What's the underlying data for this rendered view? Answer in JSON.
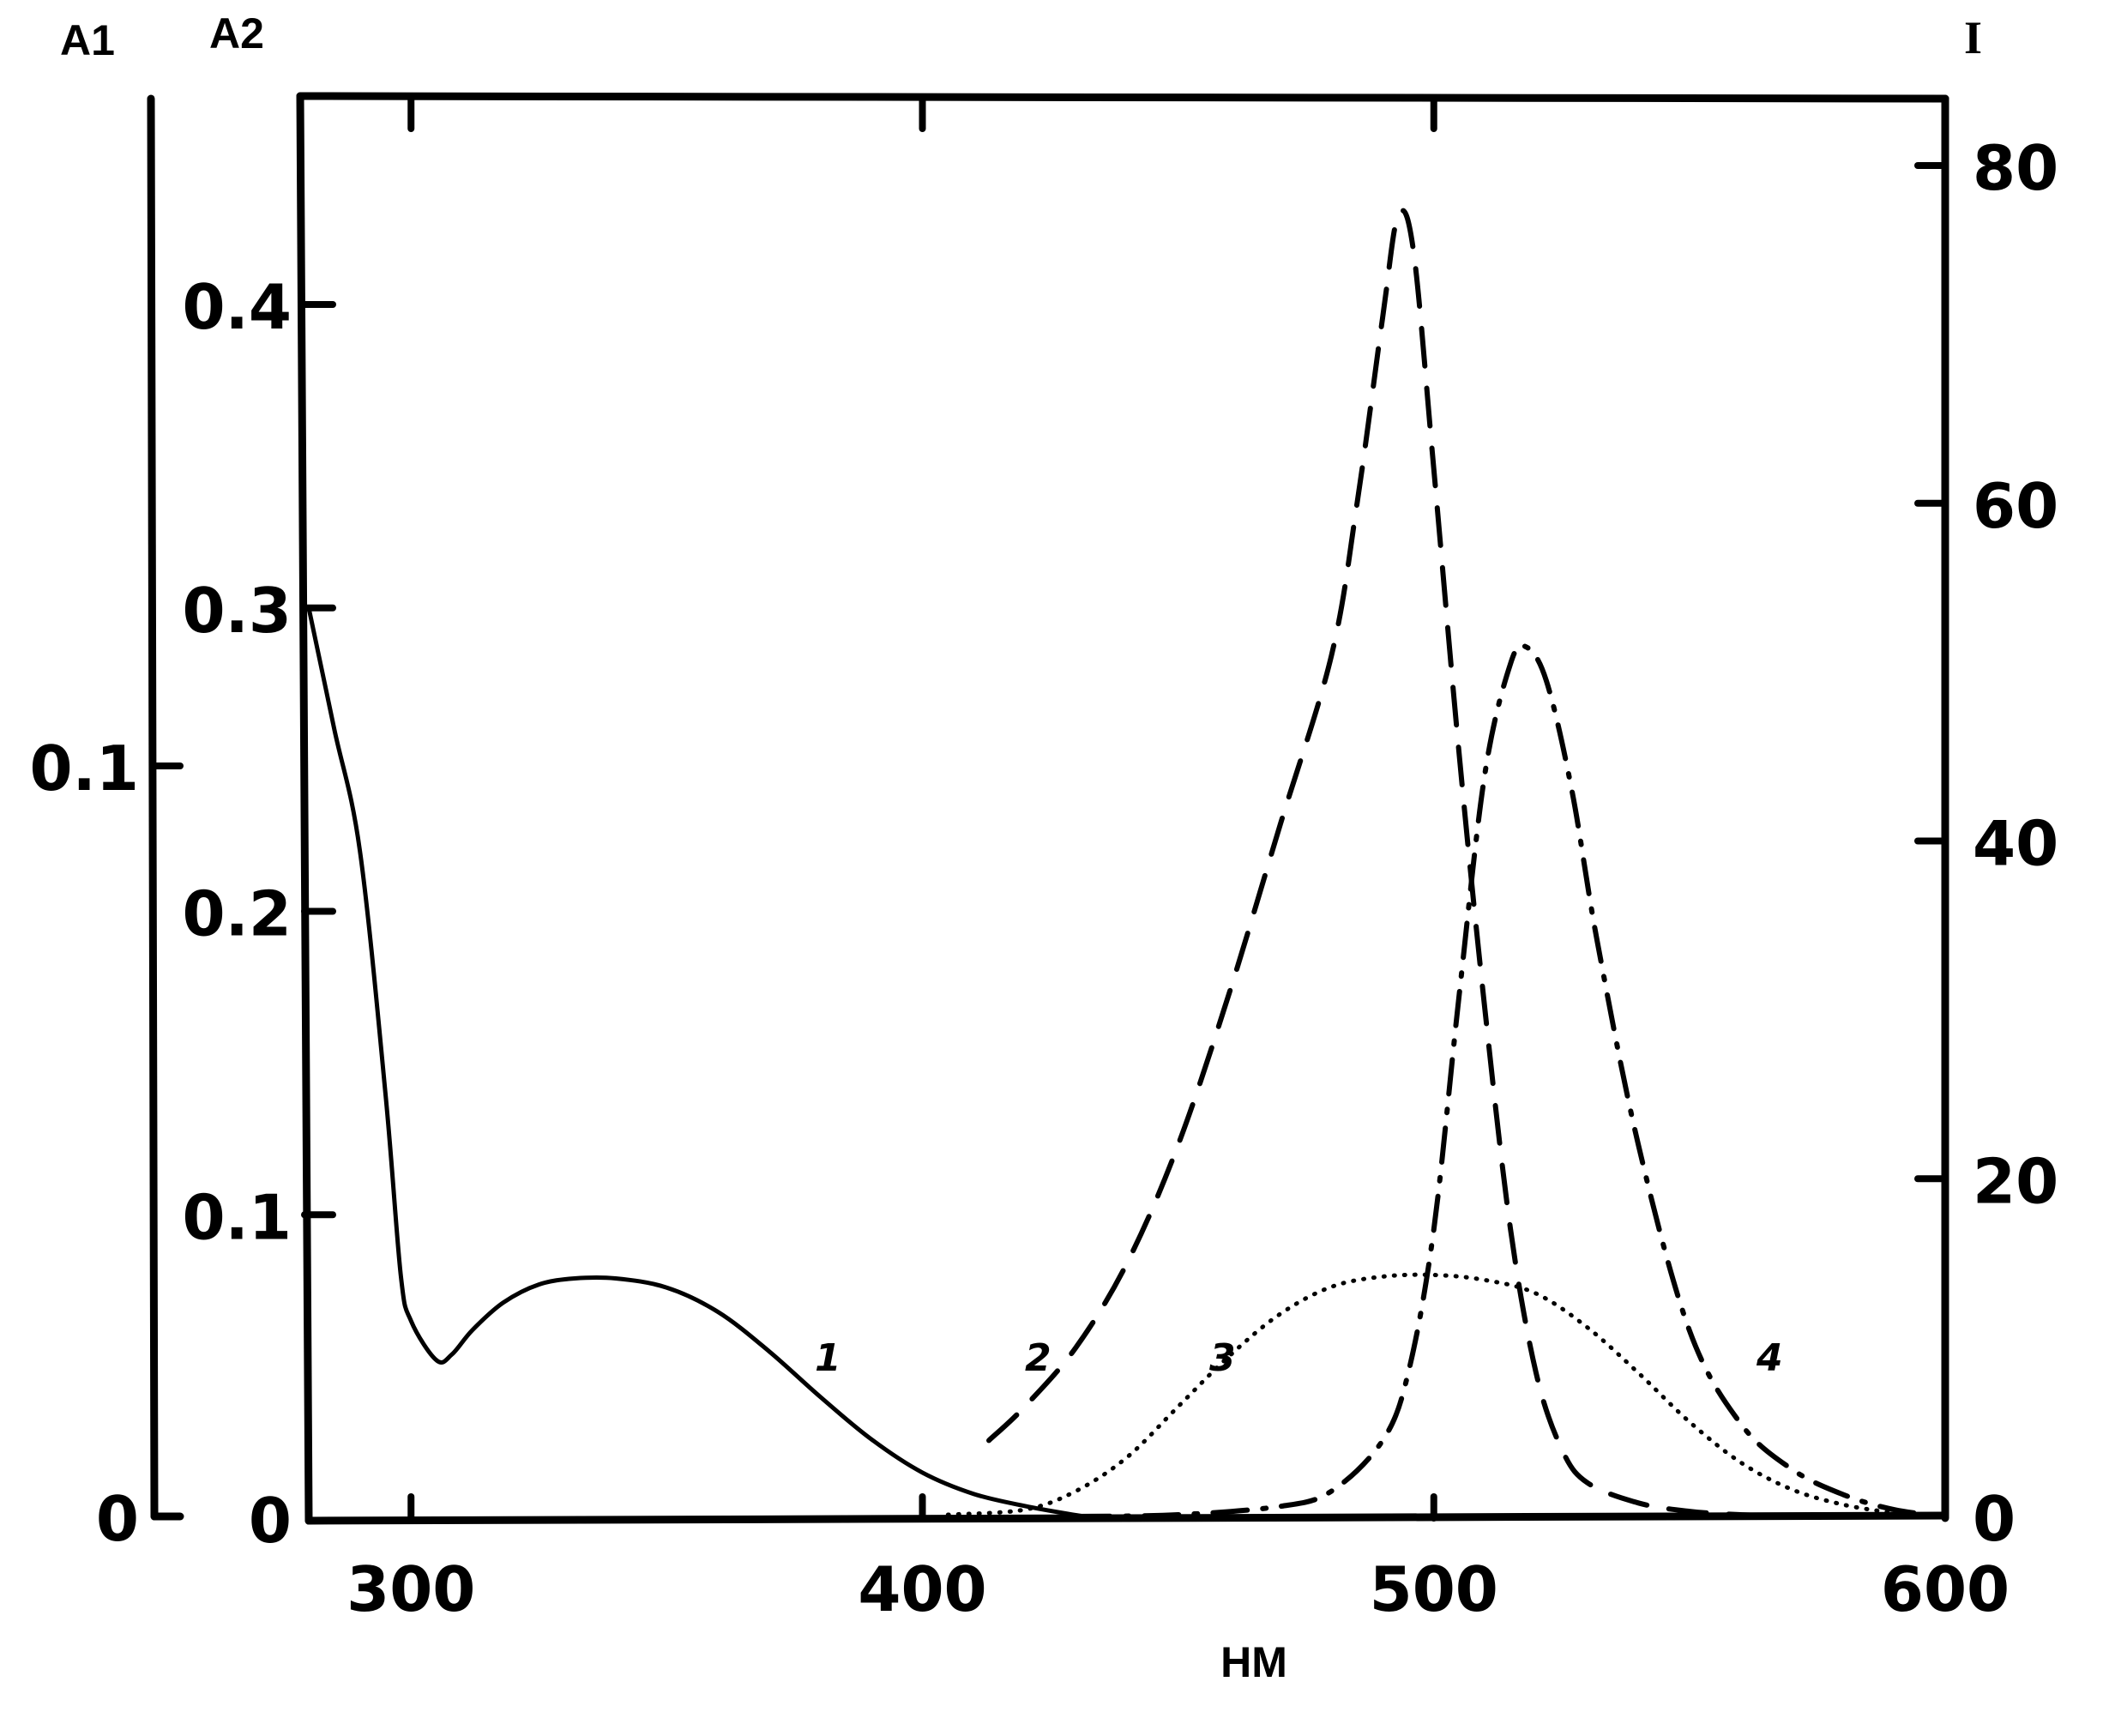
{
  "chart_data": {
    "type": "line",
    "xlabel": "HM",
    "xlim": [
      280,
      600
    ],
    "x_ticks": [
      300,
      400,
      500,
      600
    ],
    "axes": {
      "A1": {
        "label": "A1",
        "ticks": [
          0,
          0.1
        ]
      },
      "A2": {
        "label": "A2",
        "ylim": [
          0,
          0.4
        ],
        "ticks": [
          0,
          0.1,
          0.2,
          0.3,
          0.4
        ]
      },
      "I": {
        "label": "I",
        "ylim": [
          0,
          80
        ],
        "ticks": [
          0,
          20,
          40,
          60,
          80
        ]
      }
    },
    "series": [
      {
        "name": "1",
        "axis": "A2",
        "style": "solid",
        "x": [
          280,
          285,
          290,
          295,
          298,
          300,
          305,
          308,
          312,
          318,
          325,
          332,
          340,
          350,
          360,
          370,
          380,
          390,
          400,
          410,
          420,
          430,
          434
        ],
        "y": [
          0.3,
          0.26,
          0.22,
          0.14,
          0.08,
          0.065,
          0.052,
          0.054,
          0.062,
          0.071,
          0.077,
          0.079,
          0.079,
          0.076,
          0.068,
          0.055,
          0.04,
          0.026,
          0.015,
          0.008,
          0.004,
          0.001,
          0.0
        ]
      },
      {
        "name": "2",
        "axis": "I",
        "style": "dashed",
        "x": [
          413,
          420,
          430,
          440,
          450,
          460,
          470,
          480,
          485,
          490,
          493,
          496,
          500,
          505,
          510,
          515,
          520,
          525,
          530,
          540,
          550,
          560,
          570
        ],
        "y": [
          4.5,
          6.5,
          10,
          15,
          22,
          31,
          41,
          51,
          60,
          71,
          77,
          75,
          62,
          45,
          30,
          17,
          8.5,
          4,
          2,
          0.8,
          0.3,
          0.1,
          0
        ]
      },
      {
        "name": "3",
        "axis": "I",
        "style": "dotted",
        "x": [
          405,
          420,
          430,
          440,
          450,
          460,
          470,
          480,
          490,
          500,
          510,
          520,
          530,
          540,
          550,
          560,
          570,
          580,
          590,
          595
        ],
        "y": [
          0.1,
          0.4,
          1.5,
          3.5,
          6.5,
          9.5,
          12,
          13.6,
          14.2,
          14.3,
          14,
          13.2,
          11.2,
          8.5,
          5.6,
          3.2,
          1.6,
          0.7,
          0.2,
          0
        ]
      },
      {
        "name": "4",
        "axis": "I",
        "style": "dash-dot",
        "x": [
          430,
          450,
          470,
          480,
          490,
          495,
          500,
          505,
          510,
          515,
          518,
          522,
          527,
          532,
          540,
          550,
          560,
          570,
          580,
          590,
          600
        ],
        "y": [
          0,
          0.1,
          0.6,
          1.5,
          4.5,
          8.5,
          17,
          31,
          44,
          50.5,
          51.5,
          49.5,
          43,
          34,
          22,
          11,
          5.5,
          2.8,
          1.3,
          0.4,
          0
        ]
      }
    ],
    "curve_labels": [
      "1",
      "2",
      "3",
      "4"
    ]
  }
}
